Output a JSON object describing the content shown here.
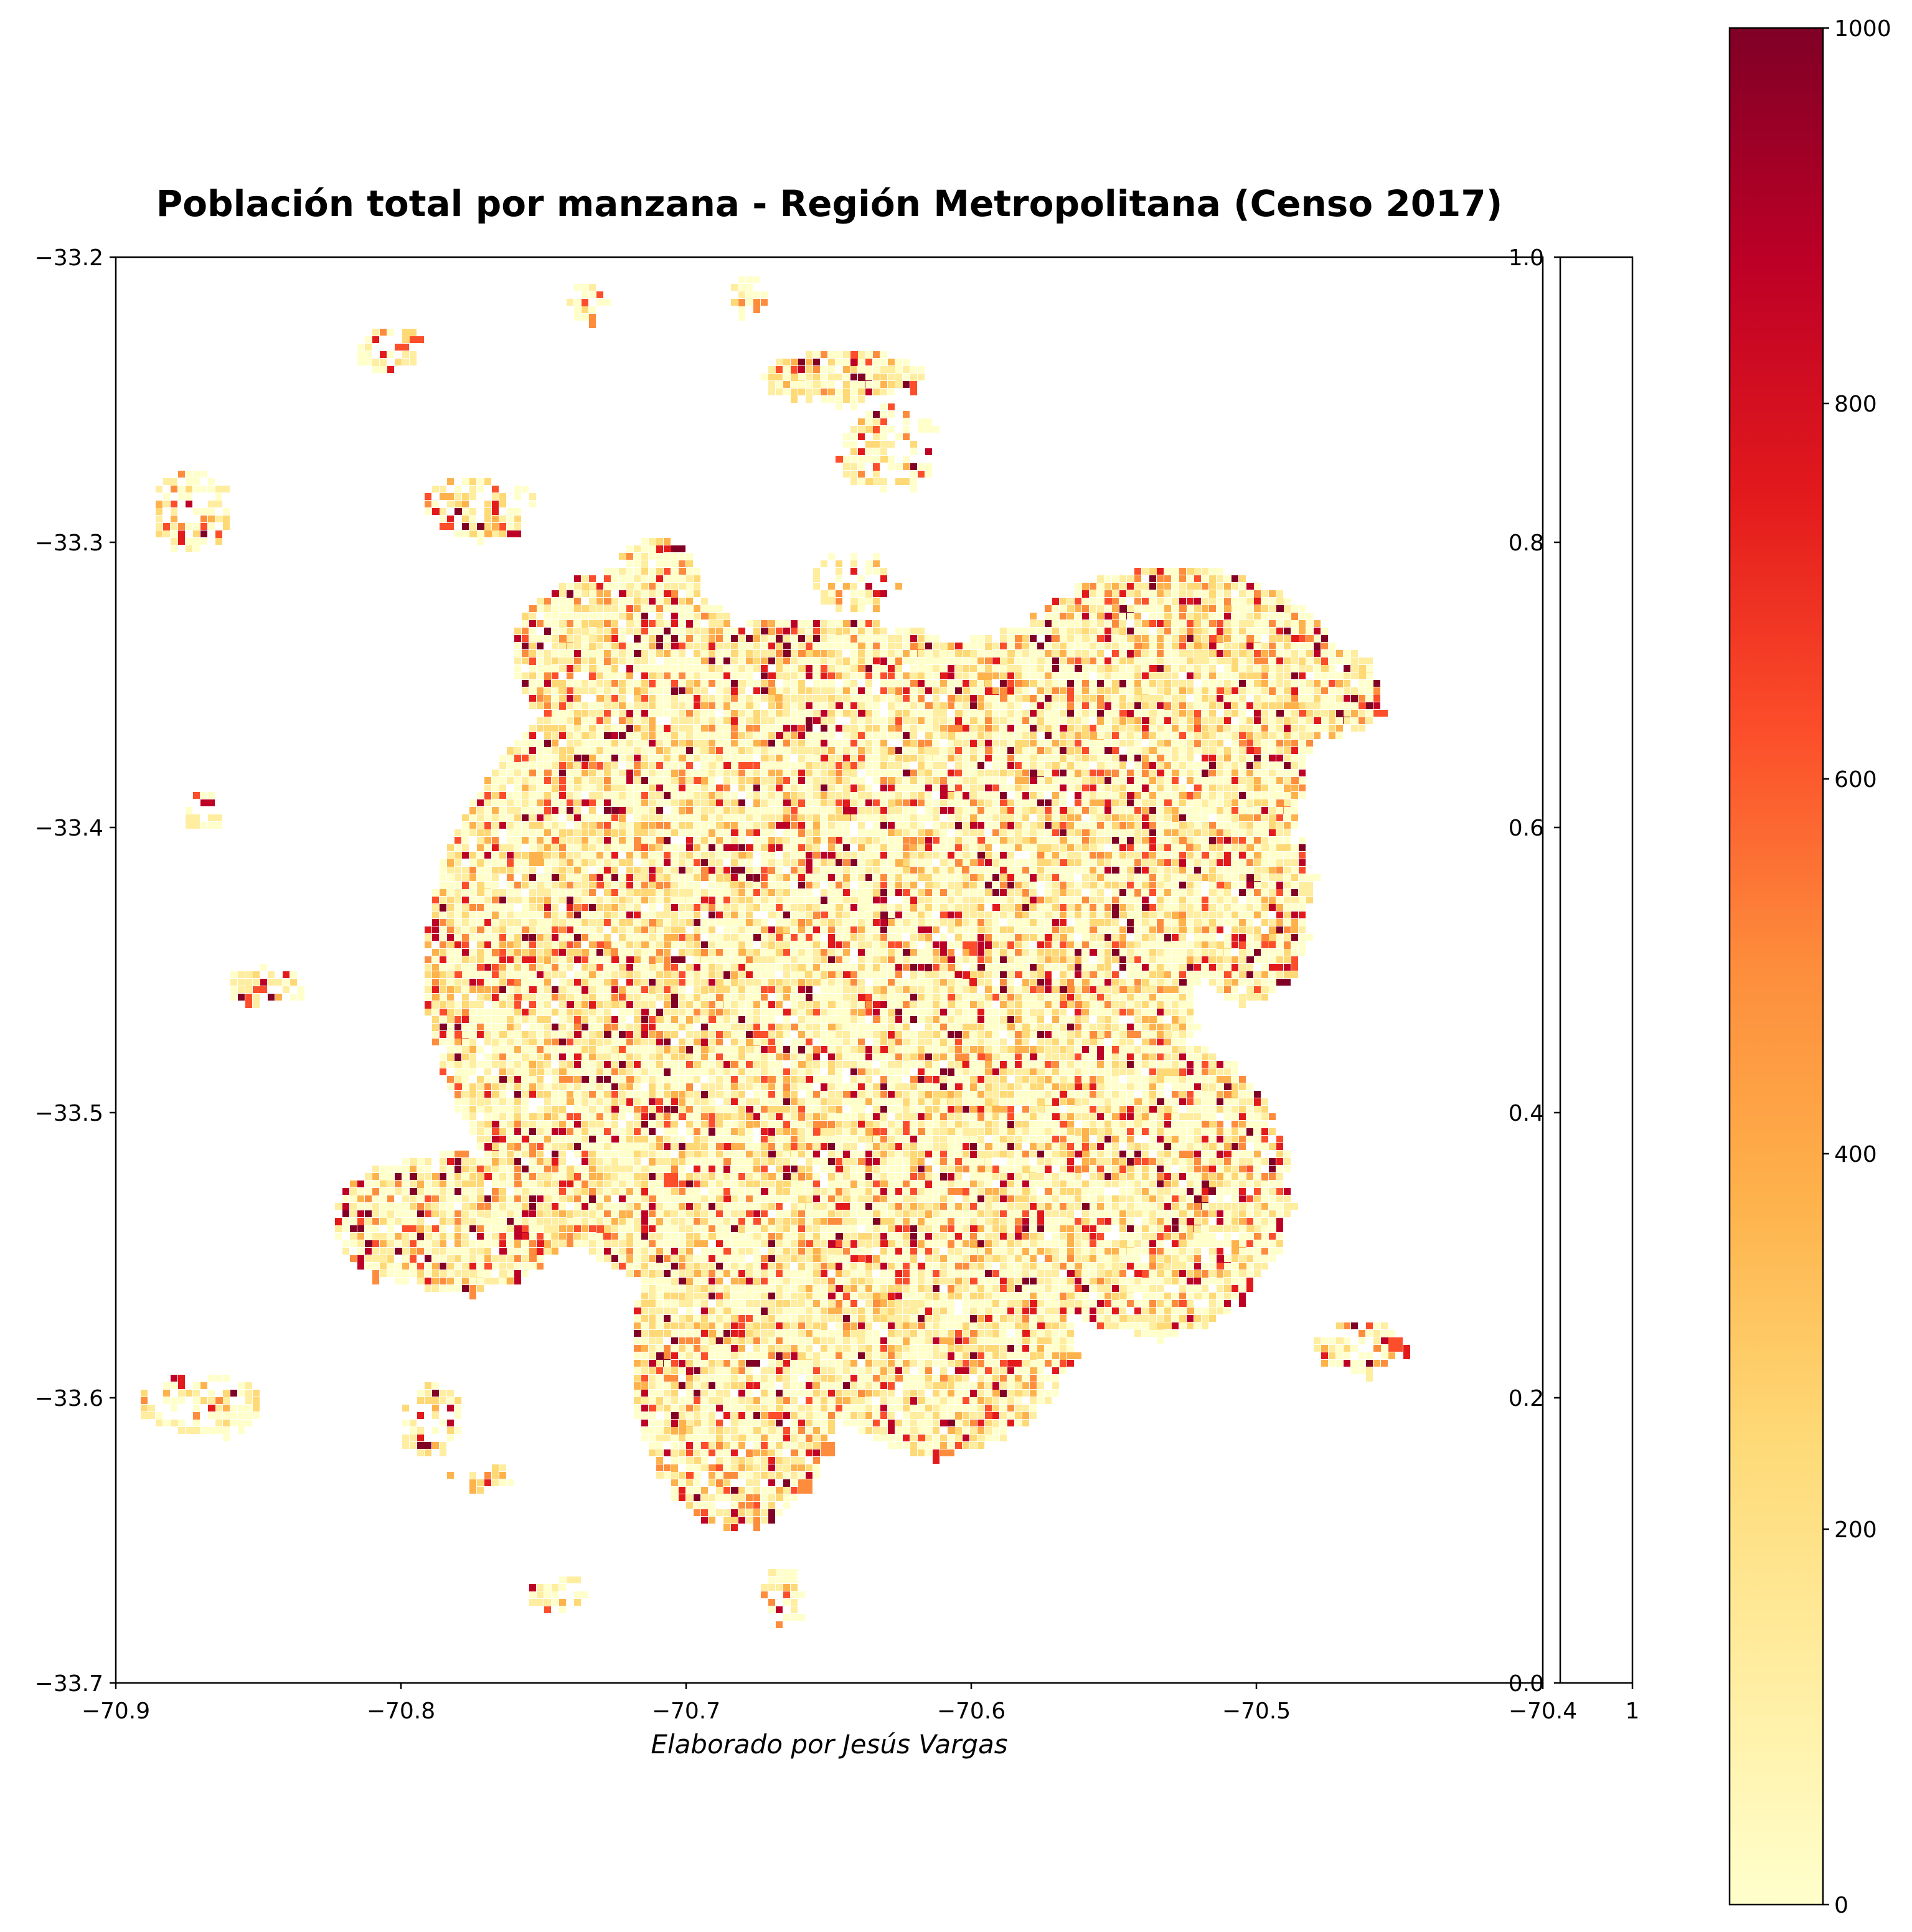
{
  "title": "Población total por manzana - Región Metropolitana (Censo 2017)",
  "credit": "Elaborado por Jesús Vargas",
  "map": {
    "x_ticks": [
      "−70.9",
      "−70.8",
      "−70.7",
      "−70.6",
      "−70.5",
      "−70.4"
    ],
    "y_ticks": [
      "−33.2",
      "−33.3",
      "−33.4",
      "−33.5",
      "−33.6",
      "−33.7"
    ],
    "xlim": [
      -70.9,
      -70.4
    ],
    "ylim": [
      -33.7,
      -33.2
    ],
    "colormap": "YlOrRd",
    "scale_colors": [
      "#ffffcc",
      "#ffeda0",
      "#fed976",
      "#feb24c",
      "#fd8d3c",
      "#fc4e2a",
      "#e31a1c",
      "#bd0026",
      "#800026"
    ]
  },
  "inset_axis": {
    "y_ticks": [
      "0.0",
      "0.2",
      "0.4",
      "0.6",
      "0.8",
      "1.0"
    ],
    "x_tick": "1"
  },
  "colorbar": {
    "ticks": [
      "0",
      "200",
      "400",
      "600",
      "800",
      "1000"
    ],
    "range": [
      0,
      1000
    ]
  }
}
